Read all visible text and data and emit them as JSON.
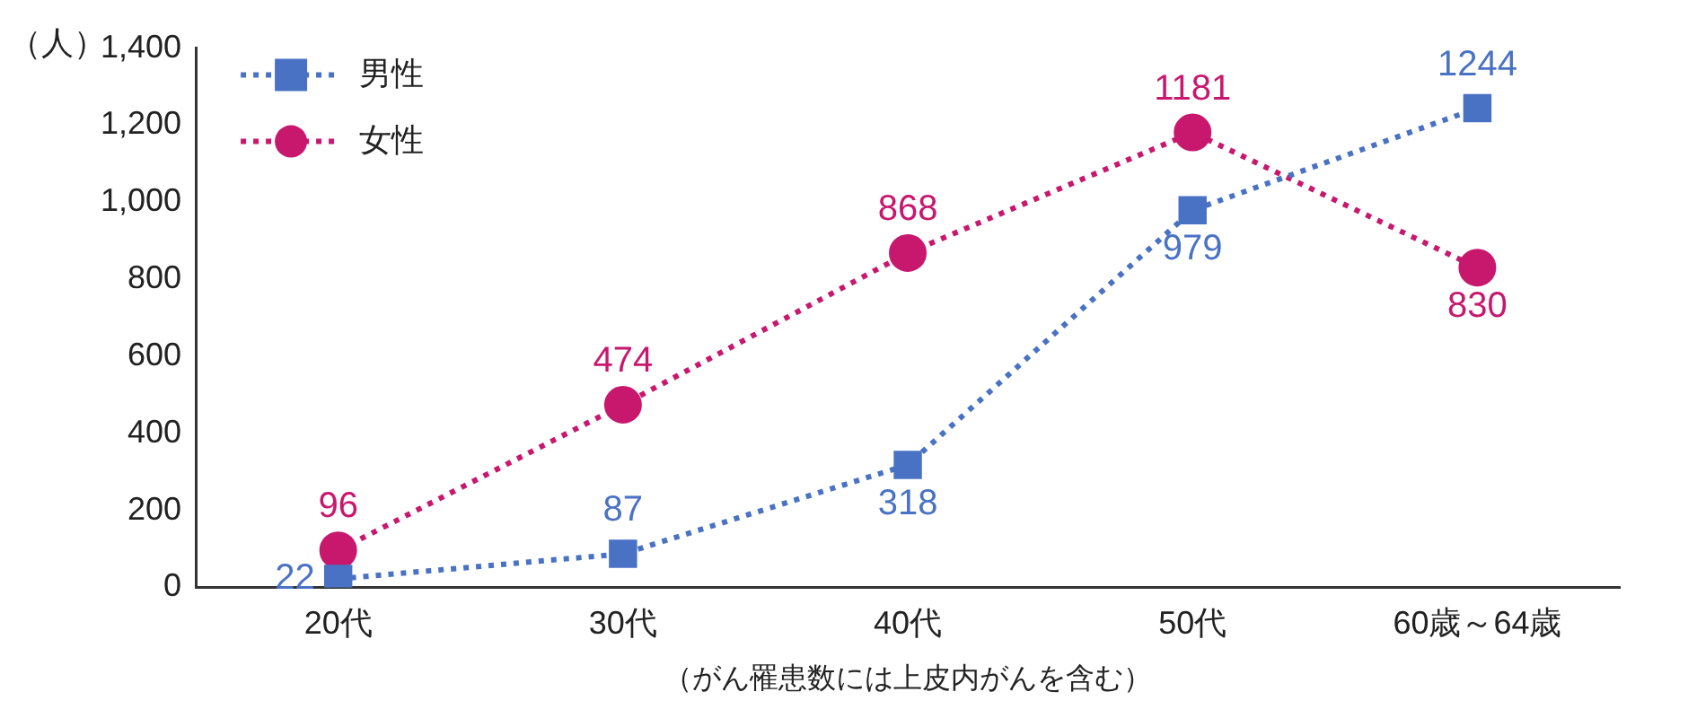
{
  "chart_data": {
    "type": "line",
    "ylabel": "（人）",
    "xlabel": "（がん罹患数には上皮内がんを含む）",
    "categories": [
      "20代",
      "30代",
      "40代",
      "50代",
      "60歳～64歳"
    ],
    "series": [
      {
        "name": "男性",
        "color": "#4a72c4",
        "marker": "square",
        "values": [
          22,
          87,
          318,
          979,
          1244
        ]
      },
      {
        "name": "女性",
        "color": "#c8186e",
        "marker": "circle",
        "values": [
          96,
          474,
          868,
          1181,
          830
        ]
      }
    ],
    "ylim": [
      0,
      1400
    ],
    "yticks": [
      0,
      200,
      400,
      600,
      800,
      {
        "value": 1000,
        "label": "1,000"
      },
      {
        "value": 1200,
        "label": "1,200"
      },
      {
        "value": 1400,
        "label": "1,400"
      }
    ],
    "grid": false,
    "legend": "top left",
    "line_style": "dotted",
    "data_labels": true
  }
}
